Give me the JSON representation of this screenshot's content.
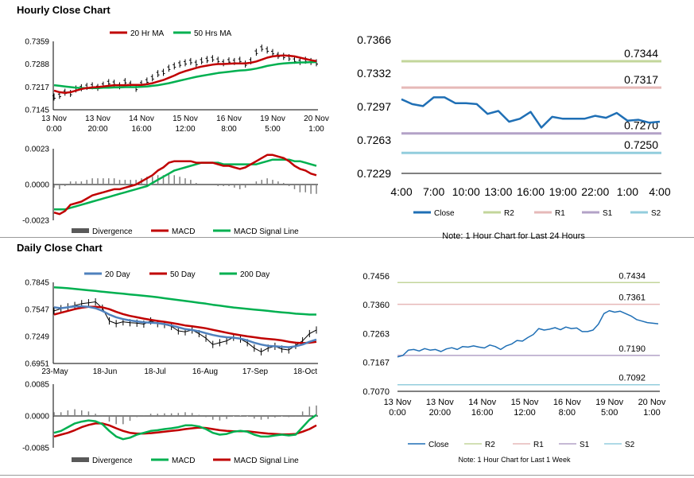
{
  "sections": [
    {
      "title": "Hourly Close Chart"
    },
    {
      "title": "Daily Close Chart"
    }
  ],
  "colors": {
    "black": "#000000",
    "red": "#c00000",
    "green": "#00b050",
    "blue": "#4f81bd",
    "close": "#1f6fb5",
    "r2": "#c3d69b",
    "r1": "#e6b9b8",
    "s1": "#b3a2c7",
    "s2": "#93cddd",
    "gray": "#808080"
  },
  "chart_data": [
    {
      "id": "hourly_price",
      "type": "line",
      "series_names": [
        "20 Hr MA",
        "50 Hrs MA"
      ],
      "y_ticks": [
        "0.7359",
        "0.7288",
        "0.7217",
        "0.7145"
      ],
      "ylim": [
        0.7145,
        0.7359
      ],
      "x_ticks": [
        [
          "13 Nov",
          "0:00"
        ],
        [
          "13 Nov",
          "20:00"
        ],
        [
          "14 Nov",
          "16:00"
        ],
        [
          "15 Nov",
          "12:00"
        ],
        [
          "16 Nov",
          "8:00"
        ],
        [
          "19 Nov",
          "5:00"
        ],
        [
          "20 Nov",
          "1:00"
        ]
      ],
      "close": [
        0.7185,
        0.719,
        0.72,
        0.7196,
        0.721,
        0.7214,
        0.7218,
        0.722,
        0.7215,
        0.7222,
        0.723,
        0.7228,
        0.722,
        0.7233,
        0.7225,
        0.7212,
        0.7226,
        0.7235,
        0.7245,
        0.7258,
        0.7262,
        0.7275,
        0.7282,
        0.7288,
        0.7292,
        0.7296,
        0.729,
        0.7298,
        0.7302,
        0.7305,
        0.73,
        0.7292,
        0.7298,
        0.7296,
        0.73,
        0.7288,
        0.7298,
        0.7325,
        0.7338,
        0.7332,
        0.7324,
        0.7315,
        0.7312,
        0.7308,
        0.73,
        0.7296,
        0.73,
        0.7296,
        0.7292
      ],
      "ma20": [
        0.7205,
        0.72,
        0.7198,
        0.72,
        0.7205,
        0.721,
        0.7213,
        0.7215,
        0.7216,
        0.7218,
        0.722,
        0.7222,
        0.7222,
        0.7222,
        0.7223,
        0.7223,
        0.7223,
        0.7225,
        0.7228,
        0.7233,
        0.7238,
        0.7245,
        0.7252,
        0.726,
        0.7266,
        0.7271,
        0.7276,
        0.728,
        0.7283,
        0.7286,
        0.7288,
        0.7288,
        0.7289,
        0.729,
        0.729,
        0.729,
        0.7292,
        0.7296,
        0.7302,
        0.7308,
        0.7312,
        0.7314,
        0.7315,
        0.7314,
        0.7312,
        0.7308,
        0.7304,
        0.73,
        0.7297
      ],
      "ma50": [
        0.7222,
        0.722,
        0.7218,
        0.7216,
        0.7214,
        0.7213,
        0.7213,
        0.7213,
        0.7213,
        0.7214,
        0.7214,
        0.7215,
        0.7215,
        0.7216,
        0.7216,
        0.7216,
        0.7217,
        0.7218,
        0.722,
        0.7222,
        0.7225,
        0.7228,
        0.7232,
        0.7236,
        0.724,
        0.7244,
        0.7248,
        0.7251,
        0.7254,
        0.7257,
        0.726,
        0.7262,
        0.7264,
        0.7266,
        0.7268,
        0.7269,
        0.7271,
        0.7274,
        0.7278,
        0.7282,
        0.7285,
        0.7288,
        0.729,
        0.7291,
        0.7292,
        0.7293,
        0.7293,
        0.7294,
        0.7294
      ]
    },
    {
      "id": "hourly_macd",
      "type": "line",
      "series_names": [
        "Divergence",
        "MACD",
        "MACD Signal Line"
      ],
      "y_ticks": [
        "0.0023",
        "0.0000",
        "-0.0023"
      ],
      "ylim": [
        -0.0023,
        0.0023
      ],
      "macd": [
        -0.0018,
        -0.0019,
        -0.0017,
        -0.0013,
        -0.0012,
        -0.0011,
        -0.0009,
        -0.0007,
        -0.0006,
        -0.0005,
        -0.0004,
        -0.0003,
        -0.0003,
        -0.0002,
        -0.0001,
        0.0,
        0.0002,
        0.0004,
        0.0006,
        0.0009,
        0.0011,
        0.0014,
        0.0015,
        0.0015,
        0.0015,
        0.0015,
        0.0014,
        0.0014,
        0.0014,
        0.0014,
        0.0013,
        0.0012,
        0.0012,
        0.0011,
        0.001,
        0.0011,
        0.0013,
        0.0015,
        0.0017,
        0.0019,
        0.0019,
        0.0018,
        0.0017,
        0.0015,
        0.0012,
        0.001,
        0.0009,
        0.0007,
        0.0006
      ],
      "signal": [
        -0.0016,
        -0.0016,
        -0.0016,
        -0.0015,
        -0.0014,
        -0.0013,
        -0.0012,
        -0.0011,
        -0.001,
        -0.0009,
        -0.0008,
        -0.0007,
        -0.0006,
        -0.0005,
        -0.0004,
        -0.0003,
        -0.0002,
        -0.0001,
        0.0001,
        0.0003,
        0.0005,
        0.0007,
        0.0009,
        0.001,
        0.0011,
        0.0012,
        0.0013,
        0.0014,
        0.0014,
        0.0014,
        0.0014,
        0.0013,
        0.0013,
        0.0013,
        0.0013,
        0.0013,
        0.0013,
        0.0013,
        0.0014,
        0.0015,
        0.0016,
        0.0016,
        0.0016,
        0.0016,
        0.0015,
        0.0015,
        0.0014,
        0.0013,
        0.0012
      ]
    },
    {
      "id": "hourly_levels",
      "type": "line",
      "series_names": [
        "Close",
        "R2",
        "R1",
        "S1",
        "S2"
      ],
      "note": "Note: 1 Hour Chart for Last 24 Hours",
      "y_ticks": [
        "0.7366",
        "0.7332",
        "0.7297",
        "0.7263",
        "0.7229"
      ],
      "ylim": [
        0.7229,
        0.7366
      ],
      "x_ticks": [
        "4:00",
        "7:00",
        "10:00",
        "13:00",
        "16:00",
        "19:00",
        "22:00",
        "1:00",
        "4:00"
      ],
      "close": [
        0.7305,
        0.73,
        0.7298,
        0.7307,
        0.7307,
        0.7301,
        0.7301,
        0.73,
        0.729,
        0.7293,
        0.7282,
        0.7285,
        0.7292,
        0.7276,
        0.7287,
        0.7285,
        0.7285,
        0.7285,
        0.7288,
        0.7286,
        0.7291,
        0.7283,
        0.7284,
        0.7281,
        0.7282
      ],
      "levels": [
        {
          "name": "R2",
          "value": 0.7344,
          "label": "0.7344"
        },
        {
          "name": "R1",
          "value": 0.7317,
          "label": "0.7317"
        },
        {
          "name": "S1",
          "value": 0.727,
          "label": "0.7270"
        },
        {
          "name": "S2",
          "value": 0.725,
          "label": "0.7250"
        }
      ]
    },
    {
      "id": "daily_price",
      "type": "line",
      "series_names": [
        "20 Day",
        "50 Day",
        "200 Day"
      ],
      "y_ticks": [
        "0.7845",
        "0.7547",
        "0.7249",
        "0.6951"
      ],
      "ylim": [
        0.6951,
        0.7845
      ],
      "x_ticks": [
        "23-May",
        "18-Jun",
        "18-Jul",
        "16-Aug",
        "17-Sep",
        "18-Oct"
      ],
      "close": [
        0.753,
        0.7555,
        0.7575,
        0.759,
        0.761,
        0.762,
        0.763,
        0.756,
        0.742,
        0.739,
        0.741,
        0.74,
        0.7395,
        0.7385,
        0.742,
        0.739,
        0.738,
        0.736,
        0.731,
        0.73,
        0.732,
        0.728,
        0.723,
        0.716,
        0.718,
        0.72,
        0.724,
        0.722,
        0.718,
        0.712,
        0.708,
        0.712,
        0.714,
        0.711,
        0.71,
        0.715,
        0.72,
        0.728,
        0.732
      ],
      "ma20": [
        0.757,
        0.756,
        0.757,
        0.758,
        0.758,
        0.7575,
        0.756,
        0.753,
        0.749,
        0.746,
        0.744,
        0.7425,
        0.7415,
        0.7405,
        0.74,
        0.7395,
        0.7385,
        0.737,
        0.735,
        0.733,
        0.732,
        0.7305,
        0.7285,
        0.7265,
        0.725,
        0.724,
        0.7235,
        0.7225,
        0.7205,
        0.718,
        0.716,
        0.7145,
        0.714,
        0.7135,
        0.713,
        0.714,
        0.716,
        0.719,
        0.7215
      ],
      "ma50": [
        0.749,
        0.751,
        0.753,
        0.755,
        0.7565,
        0.7575,
        0.7575,
        0.757,
        0.755,
        0.752,
        0.7495,
        0.7475,
        0.746,
        0.7445,
        0.7432,
        0.742,
        0.741,
        0.7398,
        0.7385,
        0.737,
        0.736,
        0.735,
        0.7338,
        0.7322,
        0.7306,
        0.729,
        0.7275,
        0.7262,
        0.725,
        0.724,
        0.723,
        0.7222,
        0.7215,
        0.7205,
        0.719,
        0.718,
        0.7175,
        0.718,
        0.719
      ],
      "ma200": [
        0.779,
        0.7785,
        0.778,
        0.7772,
        0.7765,
        0.7757,
        0.775,
        0.7742,
        0.7735,
        0.7727,
        0.772,
        0.7712,
        0.7705,
        0.7697,
        0.769,
        0.768,
        0.767,
        0.766,
        0.765,
        0.764,
        0.763,
        0.762,
        0.761,
        0.7598,
        0.7588,
        0.7578,
        0.7568,
        0.756,
        0.7552,
        0.7545,
        0.7538,
        0.753,
        0.7522,
        0.7515,
        0.7508,
        0.75,
        0.7495,
        0.749,
        0.749
      ]
    },
    {
      "id": "daily_macd",
      "type": "line",
      "series_names": [
        "Divergence",
        "MACD",
        "MACD Signal Line"
      ],
      "y_ticks": [
        "0.0085",
        "0.0000",
        "-0.0085"
      ],
      "ylim": [
        -0.0085,
        0.0085
      ],
      "macd": [
        -0.0045,
        -0.004,
        -0.003,
        -0.002,
        -0.0015,
        -0.0012,
        -0.0014,
        -0.0022,
        -0.004,
        -0.0055,
        -0.0062,
        -0.0058,
        -0.005,
        -0.0045,
        -0.004,
        -0.0038,
        -0.0035,
        -0.0033,
        -0.003,
        -0.0025,
        -0.0025,
        -0.0028,
        -0.0035,
        -0.0045,
        -0.005,
        -0.0048,
        -0.0042,
        -0.004,
        -0.0042,
        -0.005,
        -0.0055,
        -0.0055,
        -0.0052,
        -0.005,
        -0.0052,
        -0.005,
        -0.003,
        -0.001,
        0.0003
      ],
      "signal": [
        -0.0055,
        -0.005,
        -0.0045,
        -0.0038,
        -0.003,
        -0.0024,
        -0.002,
        -0.002,
        -0.0025,
        -0.0033,
        -0.004,
        -0.0045,
        -0.0047,
        -0.0047,
        -0.0046,
        -0.0044,
        -0.0042,
        -0.004,
        -0.0038,
        -0.0035,
        -0.0033,
        -0.0031,
        -0.0032,
        -0.0035,
        -0.0038,
        -0.004,
        -0.0041,
        -0.0041,
        -0.0041,
        -0.0043,
        -0.0045,
        -0.0047,
        -0.0048,
        -0.0049,
        -0.0049,
        -0.0048,
        -0.0042,
        -0.0035,
        -0.0025
      ]
    },
    {
      "id": "daily_levels",
      "type": "line",
      "series_names": [
        "Close",
        "R2",
        "R1",
        "S1",
        "S2"
      ],
      "note": "Note: 1 Hour Chart for Last 1 Week",
      "y_ticks": [
        "0.7456",
        "0.7360",
        "0.7263",
        "0.7167",
        "0.7070"
      ],
      "ylim": [
        0.707,
        0.7456
      ],
      "x_ticks": [
        [
          "13 Nov",
          "0:00"
        ],
        [
          "13 Nov",
          "20:00"
        ],
        [
          "14 Nov",
          "16:00"
        ],
        [
          "15 Nov",
          "12:00"
        ],
        [
          "16 Nov",
          "8:00"
        ],
        [
          "19 Nov",
          "5:00"
        ],
        [
          "20 Nov",
          "1:00"
        ]
      ],
      "close": [
        0.7185,
        0.719,
        0.7208,
        0.721,
        0.7205,
        0.7213,
        0.7208,
        0.721,
        0.7203,
        0.7212,
        0.7216,
        0.721,
        0.722,
        0.7218,
        0.7222,
        0.7218,
        0.7215,
        0.7225,
        0.722,
        0.721,
        0.7222,
        0.7228,
        0.724,
        0.7238,
        0.725,
        0.726,
        0.728,
        0.7275,
        0.7278,
        0.7283,
        0.7276,
        0.7285,
        0.728,
        0.7282,
        0.727,
        0.727,
        0.7275,
        0.7295,
        0.733,
        0.734,
        0.7335,
        0.7338,
        0.733,
        0.7322,
        0.731,
        0.7305,
        0.73,
        0.7298,
        0.7296
      ],
      "levels": [
        {
          "name": "R2",
          "value": 0.7434,
          "label": "0.7434"
        },
        {
          "name": "R1",
          "value": 0.7361,
          "label": "0.7361"
        },
        {
          "name": "S1",
          "value": 0.719,
          "label": "0.7190"
        },
        {
          "name": "S2",
          "value": 0.7092,
          "label": "0.7092"
        }
      ]
    }
  ]
}
